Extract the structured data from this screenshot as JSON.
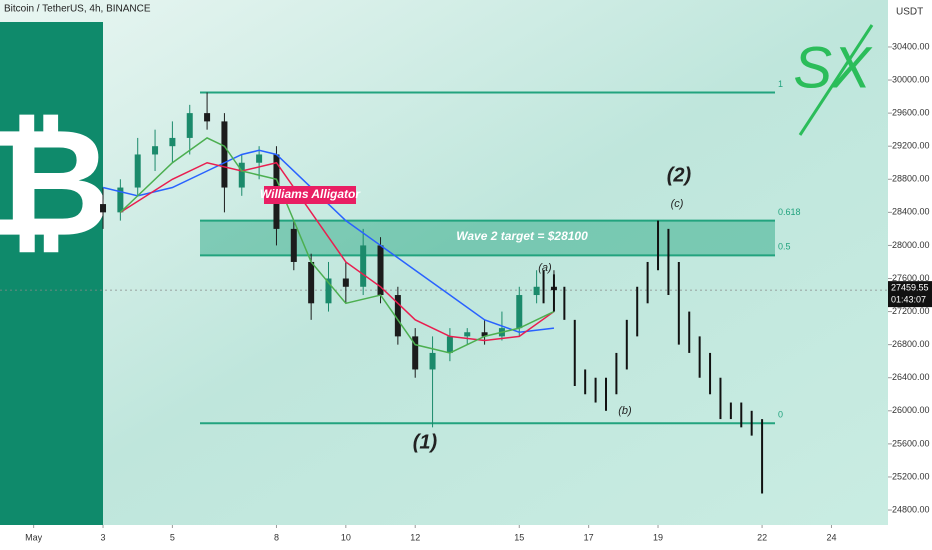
{
  "chart_data": {
    "type": "candlestick",
    "title": "Bitcoin / TetherUS, 4h, BINANCE",
    "y_unit": "USDT",
    "icon": "₿",
    "brand": "SX",
    "x": [
      3,
      3.5,
      4,
      4.5,
      5,
      5.5,
      6,
      6.5,
      7,
      7.5,
      8,
      8.5,
      9,
      9.5,
      10,
      10.5,
      11,
      11.5,
      12,
      12.5,
      13,
      13.5,
      14,
      14.5,
      15,
      15.5,
      16
    ],
    "open": [
      28500,
      28400,
      28700,
      29100,
      29200,
      29300,
      29600,
      29500,
      28700,
      29000,
      29100,
      28200,
      27800,
      27300,
      27600,
      27500,
      28000,
      27400,
      26900,
      26500,
      26700,
      26900,
      26950,
      26900,
      27000,
      27400,
      27500
    ],
    "high": [
      28700,
      28800,
      29300,
      29400,
      29500,
      29700,
      29850,
      29600,
      29100,
      29200,
      29200,
      28300,
      27900,
      27800,
      27800,
      28200,
      28100,
      27500,
      27000,
      26900,
      27000,
      27000,
      27100,
      27200,
      27500,
      27700,
      27700
    ],
    "low": [
      28200,
      28300,
      28600,
      28900,
      29000,
      29100,
      29400,
      28400,
      28600,
      28800,
      28000,
      27700,
      27100,
      27200,
      27300,
      27400,
      27300,
      26800,
      26400,
      25800,
      26600,
      26800,
      26800,
      26850,
      26900,
      27300,
      27300
    ],
    "close": [
      28400,
      28700,
      29100,
      29200,
      29300,
      29600,
      29500,
      28700,
      29000,
      29100,
      28200,
      27800,
      27300,
      27600,
      27500,
      28000,
      27400,
      26900,
      26500,
      26700,
      26900,
      26950,
      26900,
      27000,
      27400,
      27500,
      27460
    ],
    "up_color": "#1b8a6b",
    "down_color": "#1c1c1c",
    "lines": [
      {
        "color": "#2962ff",
        "x": [
          3,
          4,
          5,
          6,
          7,
          7.5,
          8,
          9,
          10,
          11,
          12,
          13,
          14,
          15,
          16
        ],
        "values": [
          28700,
          28600,
          28700,
          28900,
          29100,
          29150,
          29100,
          28700,
          28300,
          28000,
          27700,
          27400,
          27100,
          26950,
          27000
        ]
      },
      {
        "color": "#e91e4f",
        "x": [
          3.5,
          5,
          6,
          7,
          8,
          9,
          10,
          11,
          12,
          13,
          14,
          15,
          16
        ],
        "values": [
          28400,
          28800,
          29000,
          28900,
          29000,
          28400,
          27800,
          27500,
          27100,
          26900,
          26850,
          26900,
          27200
        ]
      },
      {
        "color": "#4caf50",
        "x": [
          3.5,
          5,
          6,
          6.5,
          7,
          8,
          9,
          10,
          11,
          12,
          13,
          14,
          15,
          16
        ],
        "values": [
          28400,
          29000,
          29300,
          29200,
          28900,
          28800,
          27800,
          27300,
          27400,
          26800,
          26700,
          26900,
          27000,
          27200
        ]
      }
    ],
    "projection": {
      "color": "#111111",
      "x": [
        15.7,
        16,
        16.3,
        16.6,
        16.9,
        17.2,
        17.5,
        17.8,
        18.1,
        18.4,
        18.7,
        19,
        19.3,
        19.6,
        19.9,
        20.2,
        20.5,
        20.8,
        21.1,
        21.4,
        21.7,
        22
      ],
      "low": [
        27300,
        27200,
        27100,
        26300,
        26200,
        26100,
        26000,
        26200,
        26500,
        26900,
        27300,
        27700,
        27400,
        26800,
        26700,
        26400,
        26200,
        25900,
        25900,
        25800,
        25700,
        25000
      ],
      "high": [
        27700,
        27650,
        27500,
        27100,
        26500,
        26400,
        26400,
        26700,
        27100,
        27500,
        27800,
        28300,
        28200,
        27800,
        27200,
        26900,
        26700,
        26400,
        26100,
        26100,
        26000,
        25900
      ]
    },
    "levels": [
      {
        "ratio": 1,
        "price": 29850
      },
      {
        "ratio": 0.618,
        "price": 28300
      },
      {
        "ratio": 0.5,
        "price": 27880
      },
      {
        "ratio": 0,
        "price": 25850
      }
    ],
    "level_color": "#22a37e",
    "annotations": [
      "Williams Alligator",
      "Wave 2 target = $28100",
      "(a)",
      "(b)",
      "(c)",
      "(1)",
      "(2)"
    ],
    "last_price": 27459.55,
    "countdown": "01:43:07",
    "xlim": [
      0.03,
      25.63
    ],
    "ylim": [
      24619,
      30968
    ],
    "xticks": [
      {
        "value": 1,
        "label": "May"
      },
      3,
      5,
      8,
      10,
      12,
      15,
      17,
      19,
      22,
      24
    ],
    "yticks": [
      {
        "value": 24800,
        "label": "24800.00"
      },
      {
        "value": 25200,
        "label": "25200.00"
      },
      {
        "value": 25600,
        "label": "25600.00"
      },
      {
        "value": 26000,
        "label": "26000.00"
      },
      {
        "value": 26400,
        "label": "26400.00"
      },
      {
        "value": 26800,
        "label": "26800.00"
      },
      {
        "value": 27200,
        "label": "27200.00"
      },
      {
        "value": 27600,
        "label": "27600.00"
      },
      {
        "value": 28000,
        "label": "28000.00"
      },
      {
        "value": 28400,
        "label": "28400.00"
      },
      {
        "value": 28800,
        "label": "28800.00"
      },
      {
        "value": 29200,
        "label": "29200.00"
      },
      {
        "value": 29600,
        "label": "29600.00"
      },
      {
        "value": 30000,
        "label": "30000.00"
      },
      {
        "value": 30400,
        "label": "30400.00"
      }
    ]
  }
}
